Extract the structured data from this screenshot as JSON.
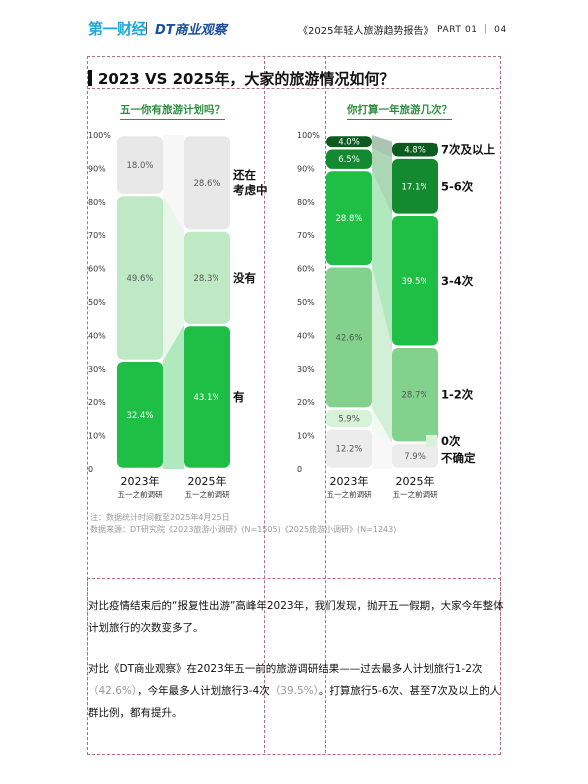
{
  "header": {
    "logo_primary": "第一财经",
    "logo_secondary": "DT商业观察",
    "report_title": "《2025年轻人旅游趋势报告》",
    "part": "PART 01 ｜ 04"
  },
  "section_title": "2023 VS 2025年，大家的旅游情况如何？",
  "chart_data": [
    {
      "type": "bar",
      "stacked": true,
      "title": "五一你有旅游计划吗？",
      "categories": [
        "2023年",
        "2025年"
      ],
      "category_sublabels": [
        "五一之前调研",
        "五一之前调研"
      ],
      "y_ticks": [
        "0",
        "10%",
        "20%",
        "30%",
        "40%",
        "50%",
        "60%",
        "70%",
        "80%",
        "90%",
        "100%"
      ],
      "ylim": [
        0,
        100
      ],
      "series": [
        {
          "name": "有",
          "values": [
            32.4,
            43.1
          ],
          "color": "#1fbf45",
          "value_labels": [
            "32.4%",
            "43.1%"
          ]
        },
        {
          "name": "没有",
          "values": [
            49.6,
            28.3
          ],
          "color": "#bfe8c5",
          "value_labels": [
            "49.6%",
            "28.3%"
          ]
        },
        {
          "name": "还在考虑中",
          "values": [
            18.0,
            28.6
          ],
          "color": "#e8e8e8",
          "value_labels": [
            "18.0%",
            "28.6%"
          ]
        }
      ],
      "legend": [
        {
          "label": "还在",
          "label2": "考虑中",
          "color": "#e8e8e8"
        },
        {
          "label": "没有",
          "label2": "",
          "color": "#bfe8c5"
        },
        {
          "label": "有",
          "label2": "",
          "color": "#1fbf45"
        }
      ]
    },
    {
      "type": "bar",
      "stacked": true,
      "title": "你打算一年旅游几次？",
      "categories": [
        "2023年",
        "2025年"
      ],
      "category_sublabels": [
        "五一之前调研",
        "五一之前调研"
      ],
      "y_ticks": [
        "0",
        "10%",
        "20%",
        "30%",
        "40%",
        "50%",
        "60%",
        "70%",
        "80%",
        "90%",
        "100%"
      ],
      "ylim": [
        0,
        100
      ],
      "series": [
        {
          "name": "不确定",
          "values": [
            12.2,
            7.9
          ],
          "color": "#ececec",
          "value_labels": [
            "12.2%",
            "7.9%"
          ]
        },
        {
          "name": "0次",
          "values": [
            5.9,
            0.0
          ],
          "color": "#d6f2d9",
          "value_labels": [
            "5.9%",
            ""
          ]
        },
        {
          "name": "1-2次",
          "values": [
            42.6,
            28.7
          ],
          "color": "#82d28d",
          "value_labels": [
            "42.6%",
            "28.7%"
          ]
        },
        {
          "name": "3-4次",
          "values": [
            28.8,
            39.5
          ],
          "color": "#1fbf45",
          "value_labels": [
            "28.8%",
            "39.5%"
          ]
        },
        {
          "name": "5-6次",
          "values": [
            6.5,
            17.1
          ],
          "color": "#138a2f",
          "value_labels": [
            "6.5%",
            "17.1%"
          ]
        },
        {
          "name": "7次及以上",
          "values": [
            4.0,
            4.8
          ],
          "color": "#0c5a1f",
          "value_labels": [
            "4.0%",
            "4.8%"
          ]
        }
      ],
      "legend": [
        {
          "label": "7次及以上",
          "color": "#0c5a1f"
        },
        {
          "label": "5-6次",
          "color": "#138a2f"
        },
        {
          "label": "3-4次",
          "color": "#1fbf45"
        },
        {
          "label": "1-2次",
          "color": "#82d28d"
        },
        {
          "label": "0次",
          "color": "#d6f2d9"
        },
        {
          "label": "不确定",
          "color": "#ececec"
        }
      ]
    }
  ],
  "notes": {
    "line1": "注：数据统计时间截至2025年4月25日",
    "line2": "数据来源：DT研究院《2023旅游小调研》(N=1505)《2025旅游小调研》(N=1243)"
  },
  "paragraph1": "对比疫情结束后的“报复性出游”高峰年2023年，我们发现，抛开五一假期，大家今年整体计划旅行的次数变多了。",
  "paragraph2": {
    "part1": "对比《DT商业观察》在2023年五一前的旅游调研结果——过去最多人计划旅行1-2次",
    "pct1": "（42.6%）",
    "part2": "，今年最多人计划旅行3-4次",
    "pct2": "（39.5%）",
    "part3": "。打算旅行5-6次、甚至7次及以上的人群比例，都有提升。"
  }
}
